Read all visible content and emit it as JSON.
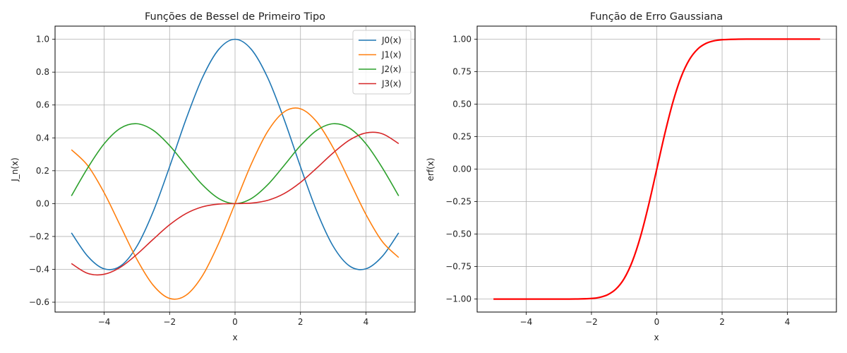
{
  "chart_data": [
    {
      "type": "line",
      "title": "Funções de Bessel de Primeiro Tipo",
      "xlabel": "x",
      "ylabel": "J_n(x)",
      "xlim": [
        -5.5,
        5.5
      ],
      "ylim": [
        -0.66,
        1.08
      ],
      "xticks": [
        -4,
        -2,
        0,
        2,
        4
      ],
      "xtick_labels": [
        "−4",
        "−2",
        "0",
        "2",
        "4"
      ],
      "yticks": [
        -0.6,
        -0.4,
        -0.2,
        0.0,
        0.2,
        0.4,
        0.6,
        0.8,
        1.0
      ],
      "ytick_labels": [
        "−0.6",
        "−0.4",
        "−0.2",
        "0.0",
        "0.2",
        "0.4",
        "0.6",
        "0.8",
        "1.0"
      ],
      "grid": true,
      "legend": "top-right",
      "x": [
        -5,
        -4.5,
        -4,
        -3.5,
        -3,
        -2.5,
        -2,
        -1.5,
        -1,
        -0.5,
        0,
        0.5,
        1,
        1.5,
        2,
        2.5,
        3,
        3.5,
        4,
        4.5,
        5
      ],
      "series": [
        {
          "name": "J0(x)",
          "color": "#1f77b4",
          "values": [
            -0.178,
            -0.321,
            -0.397,
            -0.38,
            -0.26,
            -0.048,
            0.224,
            0.512,
            0.765,
            0.938,
            1.0,
            0.938,
            0.765,
            0.512,
            0.224,
            -0.048,
            -0.26,
            -0.38,
            -0.397,
            -0.321,
            -0.178
          ]
        },
        {
          "name": "J1(x)",
          "color": "#ff7f0e",
          "values": [
            0.328,
            0.231,
            0.066,
            -0.137,
            -0.339,
            -0.497,
            -0.577,
            -0.558,
            -0.44,
            -0.242,
            0.0,
            0.242,
            0.44,
            0.558,
            0.577,
            0.497,
            0.339,
            0.137,
            -0.066,
            -0.231,
            -0.328
          ]
        },
        {
          "name": "J2(x)",
          "color": "#2ca02c",
          "values": [
            0.047,
            0.218,
            0.364,
            0.459,
            0.486,
            0.446,
            0.353,
            0.232,
            0.115,
            0.031,
            0.0,
            0.031,
            0.115,
            0.232,
            0.353,
            0.446,
            0.486,
            0.459,
            0.364,
            0.218,
            0.047
          ]
        },
        {
          "name": "J3(x)",
          "color": "#d62728",
          "values": [
            -0.365,
            -0.425,
            -0.43,
            -0.387,
            -0.309,
            -0.217,
            -0.129,
            -0.061,
            -0.02,
            -0.003,
            0.0,
            0.003,
            0.02,
            0.061,
            0.129,
            0.217,
            0.309,
            0.387,
            0.43,
            0.425,
            0.365
          ]
        }
      ]
    },
    {
      "type": "line",
      "title": "Função de Erro Gaussiana",
      "xlabel": "x",
      "ylabel": "erf(x)",
      "xlim": [
        -5.5,
        5.5
      ],
      "ylim": [
        -1.1,
        1.1
      ],
      "xticks": [
        -4,
        -2,
        0,
        2,
        4
      ],
      "xtick_labels": [
        "−4",
        "−2",
        "0",
        "2",
        "4"
      ],
      "yticks": [
        -1.0,
        -0.75,
        -0.5,
        -0.25,
        0.0,
        0.25,
        0.5,
        0.75,
        1.0
      ],
      "ytick_labels": [
        "−1.00",
        "−0.75",
        "−0.50",
        "−0.25",
        "0.00",
        "0.25",
        "0.50",
        "0.75",
        "1.00"
      ],
      "grid": true,
      "x": [
        -5,
        -4,
        -3,
        -2.5,
        -2,
        -1.75,
        -1.5,
        -1.25,
        -1,
        -0.75,
        -0.5,
        -0.25,
        0,
        0.25,
        0.5,
        0.75,
        1,
        1.25,
        1.5,
        1.75,
        2,
        2.5,
        3,
        4,
        5
      ],
      "series": [
        {
          "color": "#ff0000",
          "values": [
            -1.0,
            -1.0,
            -1.0,
            -0.9996,
            -0.9953,
            -0.9867,
            -0.9661,
            -0.9229,
            -0.8427,
            -0.7112,
            -0.5205,
            -0.2763,
            0.0,
            0.2763,
            0.5205,
            0.7112,
            0.8427,
            0.9229,
            0.9661,
            0.9867,
            0.9953,
            0.9996,
            1.0,
            1.0,
            1.0
          ]
        }
      ]
    }
  ]
}
